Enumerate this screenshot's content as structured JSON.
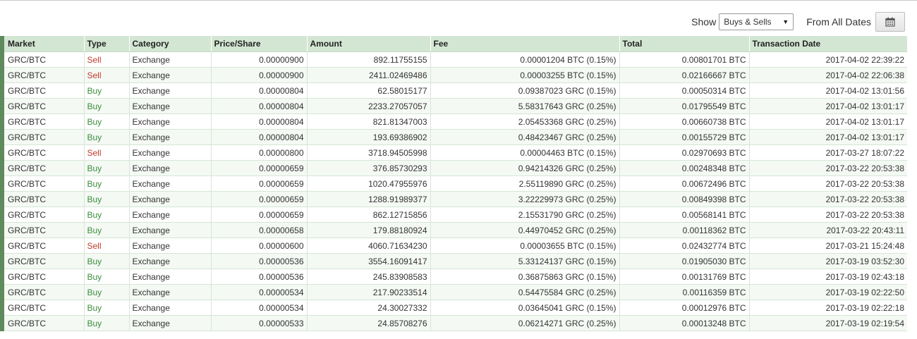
{
  "toolbar": {
    "show_label": "Show",
    "filter_value": "Buys & Sells",
    "dates_label": "From All Dates",
    "calendar_icon": "calendar-icon"
  },
  "colors": {
    "header_bg": "#d3e6d3",
    "row_marker": "#5e8a5e",
    "sell": "#c0392b",
    "buy": "#3c8c3c"
  },
  "table": {
    "headers": [
      "Market",
      "Type",
      "Category",
      "Price/Share",
      "Amount",
      "Fee",
      "Total",
      "Transaction Date"
    ],
    "rows": [
      [
        "GRC/BTC",
        "Sell",
        "Exchange",
        "0.00000900",
        "892.11755155",
        "0.00001204 BTC (0.15%)",
        "0.00801701 BTC",
        "2017-04-02 22:39:22"
      ],
      [
        "GRC/BTC",
        "Sell",
        "Exchange",
        "0.00000900",
        "2411.02469486",
        "0.00003255 BTC (0.15%)",
        "0.02166667 BTC",
        "2017-04-02 22:06:38"
      ],
      [
        "GRC/BTC",
        "Buy",
        "Exchange",
        "0.00000804",
        "62.58015177",
        "0.09387023 GRC (0.15%)",
        "0.00050314 BTC",
        "2017-04-02 13:01:56"
      ],
      [
        "GRC/BTC",
        "Buy",
        "Exchange",
        "0.00000804",
        "2233.27057057",
        "5.58317643 GRC (0.25%)",
        "0.01795549 BTC",
        "2017-04-02 13:01:17"
      ],
      [
        "GRC/BTC",
        "Buy",
        "Exchange",
        "0.00000804",
        "821.81347003",
        "2.05453368 GRC (0.25%)",
        "0.00660738 BTC",
        "2017-04-02 13:01:17"
      ],
      [
        "GRC/BTC",
        "Buy",
        "Exchange",
        "0.00000804",
        "193.69386902",
        "0.48423467 GRC (0.25%)",
        "0.00155729 BTC",
        "2017-04-02 13:01:17"
      ],
      [
        "GRC/BTC",
        "Sell",
        "Exchange",
        "0.00000800",
        "3718.94505998",
        "0.00004463 BTC (0.15%)",
        "0.02970693 BTC",
        "2017-03-27 18:07:22"
      ],
      [
        "GRC/BTC",
        "Buy",
        "Exchange",
        "0.00000659",
        "376.85730293",
        "0.94214326 GRC (0.25%)",
        "0.00248348 BTC",
        "2017-03-22 20:53:38"
      ],
      [
        "GRC/BTC",
        "Buy",
        "Exchange",
        "0.00000659",
        "1020.47955976",
        "2.55119890 GRC (0.25%)",
        "0.00672496 BTC",
        "2017-03-22 20:53:38"
      ],
      [
        "GRC/BTC",
        "Buy",
        "Exchange",
        "0.00000659",
        "1288.91989377",
        "3.22229973 GRC (0.25%)",
        "0.00849398 BTC",
        "2017-03-22 20:53:38"
      ],
      [
        "GRC/BTC",
        "Buy",
        "Exchange",
        "0.00000659",
        "862.12715856",
        "2.15531790 GRC (0.25%)",
        "0.00568141 BTC",
        "2017-03-22 20:53:38"
      ],
      [
        "GRC/BTC",
        "Buy",
        "Exchange",
        "0.00000658",
        "179.88180924",
        "0.44970452 GRC (0.25%)",
        "0.00118362 BTC",
        "2017-03-22 20:43:11"
      ],
      [
        "GRC/BTC",
        "Sell",
        "Exchange",
        "0.00000600",
        "4060.71634230",
        "0.00003655 BTC (0.15%)",
        "0.02432774 BTC",
        "2017-03-21 15:24:48"
      ],
      [
        "GRC/BTC",
        "Buy",
        "Exchange",
        "0.00000536",
        "3554.16091417",
        "5.33124137 GRC (0.15%)",
        "0.01905030 BTC",
        "2017-03-19 03:52:30"
      ],
      [
        "GRC/BTC",
        "Buy",
        "Exchange",
        "0.00000536",
        "245.83908583",
        "0.36875863 GRC (0.15%)",
        "0.00131769 BTC",
        "2017-03-19 02:43:18"
      ],
      [
        "GRC/BTC",
        "Buy",
        "Exchange",
        "0.00000534",
        "217.90233514",
        "0.54475584 GRC (0.25%)",
        "0.00116359 BTC",
        "2017-03-19 02:22:50"
      ],
      [
        "GRC/BTC",
        "Buy",
        "Exchange",
        "0.00000534",
        "24.30027332",
        "0.03645041 GRC (0.15%)",
        "0.00012976 BTC",
        "2017-03-19 02:22:18"
      ],
      [
        "GRC/BTC",
        "Buy",
        "Exchange",
        "0.00000533",
        "24.85708276",
        "0.06214271 GRC (0.25%)",
        "0.00013248 BTC",
        "2017-03-19 02:19:54"
      ]
    ]
  }
}
